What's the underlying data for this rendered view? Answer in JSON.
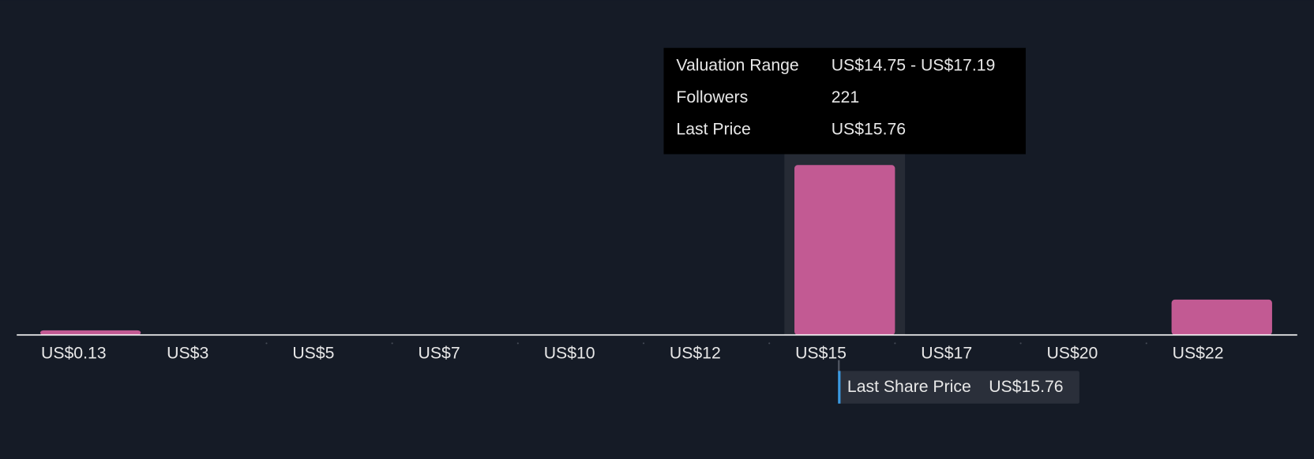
{
  "chart_data": {
    "type": "bar",
    "categories": [
      "US$0.13",
      "US$3",
      "US$5",
      "US$7",
      "US$10",
      "US$12",
      "US$15",
      "US$17",
      "US$20",
      "US$22"
    ],
    "values": [
      6,
      0,
      0,
      0,
      0,
      0,
      221,
      0,
      0,
      46
    ],
    "color": "#c25a93",
    "tooltip": {
      "rows": [
        [
          "Valuation Range",
          "US$14.75 - US$17.19"
        ],
        [
          "Followers",
          "221"
        ],
        [
          "Last Price",
          "US$15.76"
        ]
      ]
    },
    "marker": {
      "label": "Last Share Price",
      "value_label": "US$15.76"
    }
  }
}
